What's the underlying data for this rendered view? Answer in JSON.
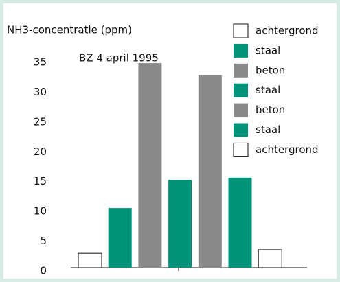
{
  "chart_data": {
    "type": "bar",
    "y_label": "NH3-concentratie (ppm)",
    "annotation": "BZ 4 april 1995",
    "categories": [
      null,
      null,
      null,
      null,
      null,
      null,
      null
    ],
    "series": [
      {
        "name": "achtergrond",
        "color": "#ffffff",
        "values": [
          2.4,
          null,
          null,
          null,
          null,
          null,
          null
        ]
      },
      {
        "name": "staal",
        "color": "#00937a",
        "values": [
          null,
          10,
          null,
          null,
          null,
          null,
          null
        ]
      },
      {
        "name": "beton",
        "color": "#898989",
        "values": [
          null,
          null,
          34.3,
          null,
          null,
          null,
          null
        ]
      },
      {
        "name": "staal",
        "color": "#00937a",
        "values": [
          null,
          null,
          null,
          14.7,
          null,
          null,
          null
        ]
      },
      {
        "name": "beton",
        "color": "#898989",
        "values": [
          null,
          null,
          null,
          null,
          32.3,
          null,
          null
        ]
      },
      {
        "name": "staal",
        "color": "#00937a",
        "values": [
          null,
          null,
          null,
          null,
          null,
          15.1,
          null
        ]
      },
      {
        "name": "achtergrond",
        "color": "#ffffff",
        "values": [
          null,
          null,
          null,
          null,
          null,
          null,
          3.0
        ]
      }
    ],
    "ylim": [
      0,
      35
    ],
    "yticks": [
      0,
      5,
      10,
      15,
      20,
      25,
      30,
      35
    ]
  }
}
